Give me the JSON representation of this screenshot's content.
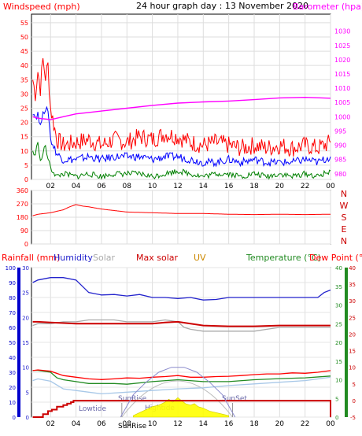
{
  "title": "24 hour graph day : 13 November 2020",
  "x_ticks": [
    "02",
    "04",
    "06",
    "08",
    "10",
    "12",
    "14",
    "16",
    "18",
    "20",
    "22",
    "00"
  ],
  "colors": {
    "windspeed": "#ff0000",
    "wind_avg": "#0000ff",
    "wind_low": "#008000",
    "barometer": "#ff00ff",
    "direction": "#ff0000",
    "humidity": "#2222cc",
    "solar": "#aaaaaa",
    "maxsolar": "#cc0000",
    "uv": "#cc8800",
    "temp": "#228b22",
    "dew": "#ff0000",
    "tide": "#8a8acc",
    "sun": "#ffff00"
  },
  "panels": {
    "wind": {
      "left_label": "Windspeed (mph)",
      "right_label": "Barometer (hpa)",
      "left_ticks": [
        "0",
        "5",
        "10",
        "15",
        "20",
        "25",
        "30",
        "35",
        "40",
        "45",
        "50",
        "55"
      ],
      "right_ticks": [
        "980",
        "985",
        "990",
        "995",
        "1000",
        "1005",
        "1010",
        "1015",
        "1020",
        "1025",
        "1030"
      ]
    },
    "direction": {
      "ticks": [
        "0",
        "90",
        "180",
        "270",
        "360"
      ],
      "compass": [
        "N",
        "W",
        "S",
        "E",
        "N"
      ]
    },
    "lower": {
      "rain_label": "Rainfall (mm)",
      "humidity_label": "Humidity",
      "solar_label": "Solar",
      "maxsolar_label": "Max solar",
      "uv_label": "UV",
      "temp_label": "Temperature (°C)",
      "dew_label": "Dew Point (°C)",
      "rain_ticks": [
        "0",
        "10",
        "20",
        "30",
        "40",
        "50",
        "60",
        "70",
        "80",
        "90",
        "100"
      ],
      "hum_ticks": [
        "0",
        "5",
        "10",
        "15",
        "20",
        "25",
        "30"
      ],
      "temp_ticks": [
        "0",
        "5",
        "10",
        "15",
        "20",
        "25",
        "30",
        "35",
        "40"
      ],
      "dew_ticks": [
        "-5",
        "0",
        "5",
        "10",
        "15",
        "20",
        "25",
        "30",
        "35",
        "40"
      ],
      "annotations": {
        "lowtide": "Lowtide",
        "hightide": "Hightide",
        "sunrise": "SunRise",
        "sunset": "SunSet",
        "sunrise_mark": "SunRise"
      }
    }
  },
  "chart_data": [
    {
      "type": "line",
      "title": "",
      "xlabel": "",
      "ylabel": "Windspeed (mph)",
      "y2label": "Barometer (hpa)",
      "xlim": [
        0.5,
        24
      ],
      "ylim": [
        0,
        58
      ],
      "y2lim": [
        978,
        1036
      ],
      "series": [
        {
          "name": "Windspeed (mph)",
          "axis": "left",
          "x": [
            0.6,
            0.8,
            1.0,
            1.2,
            1.4,
            1.6,
            1.8,
            2.0,
            2.5,
            3,
            4,
            5,
            6,
            7,
            8,
            9,
            10,
            11,
            12,
            13,
            14,
            15,
            16,
            17,
            18,
            19,
            20,
            21,
            22,
            23,
            24
          ],
          "y": [
            35,
            30,
            38,
            32,
            42,
            36,
            40,
            25,
            14,
            12,
            13,
            14,
            12,
            14,
            13,
            15,
            14,
            16,
            15,
            13,
            12,
            13,
            12,
            11,
            12,
            11,
            12,
            11,
            12,
            11,
            13
          ]
        },
        {
          "name": "",
          "axis": "left",
          "x": [
            0.6,
            0.8,
            1.0,
            1.2,
            1.4,
            1.6,
            1.8,
            2.0,
            2.5,
            3,
            4,
            5,
            6,
            7,
            8,
            9,
            10,
            11,
            12,
            13,
            14,
            15,
            16,
            17,
            18,
            19,
            20,
            21,
            22,
            23,
            24
          ],
          "y": [
            24,
            22,
            23,
            18,
            25,
            23,
            25,
            14,
            9,
            7,
            7,
            8,
            7,
            8,
            8,
            8,
            7,
            8,
            8,
            7,
            6,
            6,
            7,
            6,
            7,
            6,
            6,
            6,
            7,
            6,
            8
          ]
        },
        {
          "name": "",
          "axis": "left",
          "x": [
            0.6,
            0.8,
            1.0,
            1.2,
            1.4,
            1.6,
            1.8,
            2.0,
            2.5,
            3,
            4,
            5,
            6,
            7,
            8,
            9,
            10,
            11,
            12,
            13,
            14,
            15,
            16,
            17,
            18,
            19,
            20,
            21,
            22,
            23,
            24
          ],
          "y": [
            10,
            8,
            14,
            6,
            9,
            12,
            7,
            4,
            1,
            2,
            1,
            2,
            1,
            2,
            2,
            2,
            1,
            2,
            3,
            2,
            1,
            2,
            2,
            1,
            2,
            1,
            2,
            1,
            2,
            1,
            3
          ]
        },
        {
          "name": "Barometer (hpa)",
          "axis": "right",
          "x": [
            0.6,
            1,
            2,
            3,
            4,
            5,
            6,
            8,
            10,
            12,
            14,
            16,
            18,
            20,
            22,
            24
          ],
          "y": [
            1000,
            999.5,
            999,
            1000,
            1001,
            1001.5,
            1002,
            1003,
            1004,
            1004.8,
            1005.2,
            1005.5,
            1006,
            1006.6,
            1006.8,
            1006.5
          ]
        }
      ]
    },
    {
      "type": "line",
      "title": "",
      "xlabel": "",
      "ylabel": "",
      "xlim": [
        0.5,
        24
      ],
      "ylim": [
        0,
        360
      ],
      "series": [
        {
          "name": "",
          "x": [
            0.6,
            1,
            2,
            3,
            3.5,
            4,
            4.5,
            5,
            6,
            7,
            8,
            10,
            12,
            14,
            16,
            18,
            20,
            22,
            24
          ],
          "y": [
            190,
            200,
            210,
            230,
            250,
            265,
            255,
            250,
            235,
            225,
            215,
            210,
            205,
            205,
            200,
            198,
            200,
            198,
            200
          ]
        }
      ]
    },
    {
      "type": "line",
      "title": "",
      "xlabel": "",
      "ylabel": "Rainfall (mm)",
      "xlim": [
        0.5,
        24
      ],
      "ylim": [
        0,
        100
      ],
      "series": [
        {
          "name": "Humidity",
          "axis": "humidity",
          "ylim": [
            0,
            30
          ],
          "x": [
            0.6,
            1,
            2,
            3,
            4,
            5,
            6,
            7,
            8,
            9,
            10,
            11,
            12,
            13,
            14,
            15,
            16,
            17,
            18,
            19,
            20,
            21,
            22,
            23,
            23.5,
            24
          ],
          "y": [
            27,
            27.5,
            28,
            28,
            27.5,
            25,
            24.5,
            24.6,
            24.3,
            24.6,
            24,
            24,
            23.8,
            24,
            23.5,
            23.6,
            24,
            24,
            24,
            24,
            24,
            24,
            24,
            24,
            25,
            25.5
          ]
        },
        {
          "name": "Solar",
          "axis": "temp",
          "ylim": [
            0,
            40
          ],
          "x": [
            0.6,
            1,
            2,
            3,
            4,
            5,
            6,
            7,
            8,
            9,
            10,
            11,
            12,
            12.5,
            13,
            14,
            15,
            16,
            17,
            18,
            19,
            20,
            21,
            22,
            23,
            24
          ],
          "y": [
            24.5,
            25,
            25,
            25.5,
            25.5,
            26,
            26,
            26,
            25.5,
            25.5,
            25.5,
            26,
            25.5,
            24,
            23.5,
            23,
            23,
            23,
            23,
            23,
            23.5,
            24,
            24,
            24,
            24,
            24
          ]
        },
        {
          "name": "Max solar",
          "axis": "temp",
          "ylim": [
            0,
            40
          ],
          "x": [
            0.6,
            1,
            2,
            4,
            6,
            8,
            10,
            11,
            12,
            13,
            14,
            16,
            18,
            20,
            22,
            24
          ],
          "y": [
            25.5,
            25.5,
            25.3,
            25,
            25,
            25,
            25,
            25.3,
            25.5,
            25,
            24.5,
            24.3,
            24.3,
            24.5,
            24.5,
            24.5
          ]
        },
        {
          "name": "Temperature (°C)",
          "axis": "temp",
          "ylim": [
            0,
            40
          ],
          "x": [
            0.6,
            1,
            2,
            2.5,
            3,
            4,
            5,
            6,
            7,
            8,
            10,
            12,
            14,
            16,
            18,
            20,
            22,
            24
          ],
          "y": [
            12.5,
            12.5,
            12,
            10.5,
            10,
            9.5,
            9,
            9,
            9,
            8.8,
            9.5,
            10,
            9.5,
            9.5,
            10,
            10.3,
            10.5,
            11
          ]
        },
        {
          "name": "Dew Point (°C)",
          "axis": "dew",
          "ylim": [
            -5,
            40
          ],
          "x": [
            0.6,
            1,
            2,
            3,
            4,
            5,
            6,
            7,
            8,
            9,
            10,
            11,
            12,
            13,
            14,
            15,
            16,
            17,
            18,
            19,
            20,
            21,
            22,
            23,
            24
          ],
          "y": [
            9,
            9.2,
            8.8,
            7.5,
            7,
            6.5,
            6.3,
            6.5,
            6.8,
            6.7,
            7,
            7.2,
            7.5,
            7,
            7,
            7.2,
            7.3,
            7.5,
            7.8,
            8,
            8,
            8.3,
            8.2,
            8.5,
            9
          ]
        },
        {
          "name": "",
          "axis": "dew",
          "ylim": [
            -5,
            40
          ],
          "x": [
            0.6,
            1,
            2,
            3,
            4,
            5,
            6,
            8,
            10,
            12,
            14,
            16,
            18,
            20,
            22,
            24
          ],
          "y": [
            6,
            6.5,
            5.8,
            3.5,
            3,
            2.5,
            2,
            2.5,
            3,
            3.5,
            3.8,
            4.5,
            5,
            5.5,
            6,
            7
          ]
        },
        {
          "name": "Rainfall (mm)",
          "axis": "rain",
          "ylim": [
            0,
            100
          ],
          "x": [
            0.6,
            1.2,
            1.4,
            1.8,
            2.1,
            2.5,
            3,
            3.3,
            3.6,
            3.8,
            24
          ],
          "y": [
            0,
            0,
            2,
            4,
            5,
            7,
            8,
            9,
            10,
            11,
            11
          ]
        },
        {
          "name": "UV",
          "axis": "rain",
          "ylim": [
            0,
            100
          ],
          "x": [
            8.5,
            9,
            9.5,
            10,
            10.5,
            11,
            11.3,
            11.6,
            12,
            12.3,
            12.6,
            13,
            13.3,
            13.6,
            14,
            14.5,
            15,
            15.5,
            16
          ],
          "y": [
            1,
            3,
            5,
            7,
            8,
            10,
            12,
            10,
            13,
            11,
            9,
            8,
            9,
            7,
            6,
            4,
            3,
            2,
            1
          ]
        },
        {
          "name": "",
          "axis": "tide",
          "ylim": [
            0,
            30
          ],
          "x": [
            7.5,
            8.5,
            9.5,
            10.5,
            11.5,
            12.5,
            13.5,
            14.5,
            15.5,
            16.5
          ],
          "y": [
            0,
            4.5,
            7,
            9,
            10,
            10,
            9,
            7,
            4.5,
            0
          ]
        }
      ]
    }
  ]
}
